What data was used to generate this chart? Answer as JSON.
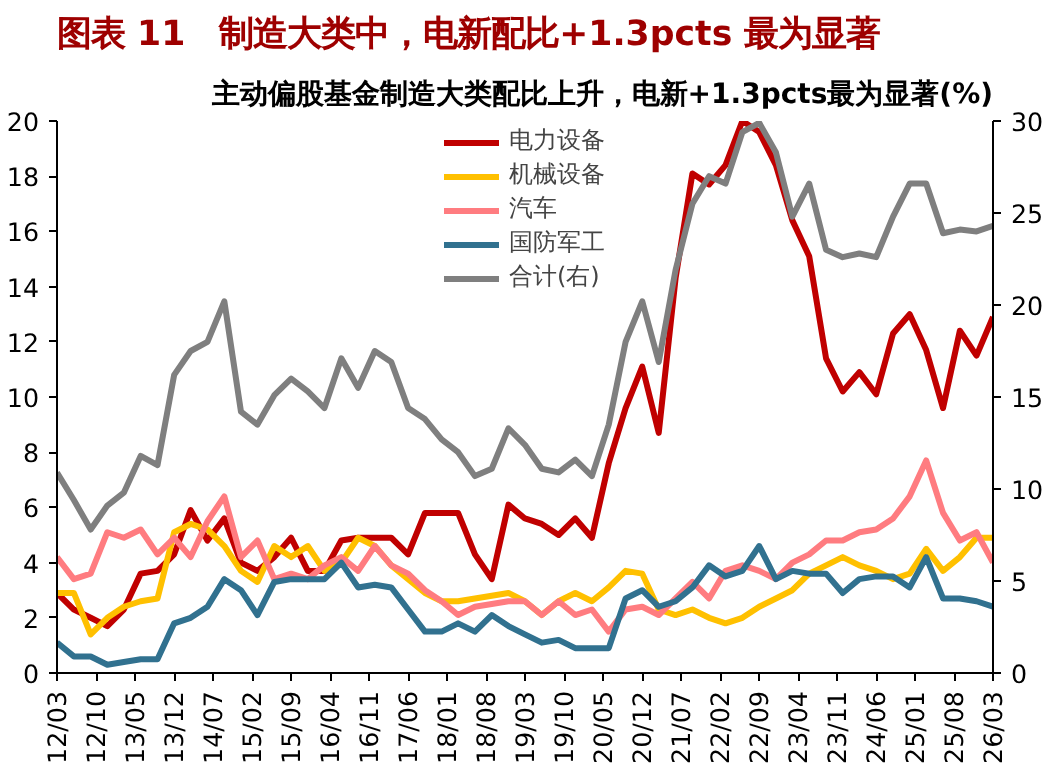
{
  "chart_data": {
    "type": "line",
    "title": "图表 11　制造大类中，电新配比+1.3pcts 最为显著",
    "subtitle": "主动偏股基金制造大类配比上升，电新+1.3pcts最为显著(%)",
    "x": [
      "2012-03",
      "2012-06",
      "2012-09",
      "2012-12",
      "2013-03",
      "2013-06",
      "2013-09",
      "2013-12",
      "2014-03",
      "2014-06",
      "2014-09",
      "2014-12",
      "2015-03",
      "2015-06",
      "2015-09",
      "2015-12",
      "2016-03",
      "2016-06",
      "2016-09",
      "2016-12",
      "2017-03",
      "2017-06",
      "2017-09",
      "2017-12",
      "2018-03",
      "2018-06",
      "2018-09",
      "2018-12",
      "2019-03",
      "2019-06",
      "2019-09",
      "2019-12",
      "2020-03",
      "2020-06",
      "2020-09",
      "2020-12",
      "2021-03",
      "2021-06",
      "2021-09",
      "2021-12",
      "2022-03",
      "2022-06",
      "2022-09",
      "2022-12",
      "2023-03",
      "2023-06",
      "2023-09",
      "2023-12",
      "2024-03",
      "2024-06",
      "2024-09",
      "2024-12",
      "2025-03",
      "2025-06",
      "2025-09",
      "2025-12",
      "2026-03"
    ],
    "series": [
      {
        "name": "电力设备",
        "color": "#c00000",
        "values": [
          2.9,
          2.3,
          2.0,
          1.7,
          2.3,
          3.6,
          3.7,
          4.3,
          5.9,
          4.8,
          5.6,
          4.0,
          3.7,
          4.2,
          4.9,
          3.7,
          3.7,
          4.8,
          4.9,
          4.9,
          4.9,
          4.3,
          5.8,
          5.8,
          5.8,
          4.3,
          3.4,
          6.1,
          5.6,
          5.4,
          5.0,
          5.6,
          4.9,
          7.6,
          9.6,
          11.1,
          8.7,
          14.3,
          18.1,
          17.7,
          18.4,
          20.0,
          19.6,
          18.4,
          16.4,
          15.1,
          11.4,
          10.2,
          10.9,
          10.1,
          12.3,
          13.0,
          11.7,
          9.6,
          12.4,
          11.5,
          12.9
        ]
      },
      {
        "name": "机械设备",
        "color": "#ffc000",
        "values": [
          2.9,
          2.9,
          1.4,
          2.0,
          2.4,
          2.6,
          2.7,
          5.1,
          5.4,
          5.2,
          4.6,
          3.7,
          3.3,
          4.6,
          4.2,
          4.6,
          3.7,
          4.0,
          4.9,
          4.6,
          3.9,
          3.4,
          2.9,
          2.6,
          2.6,
          2.7,
          2.8,
          2.9,
          2.6,
          2.1,
          2.6,
          2.9,
          2.6,
          3.1,
          3.7,
          3.6,
          2.3,
          2.1,
          2.3,
          2.0,
          1.8,
          2.0,
          2.4,
          2.7,
          3.0,
          3.6,
          3.9,
          4.2,
          3.9,
          3.7,
          3.4,
          3.6,
          4.5,
          3.7,
          4.2,
          4.9,
          4.9
        ]
      },
      {
        "name": "汽车",
        "color": "#ff7c80",
        "values": [
          4.2,
          3.4,
          3.6,
          5.1,
          4.9,
          5.2,
          4.3,
          4.9,
          4.2,
          5.5,
          6.4,
          4.2,
          4.8,
          3.4,
          3.6,
          3.4,
          3.9,
          4.2,
          3.7,
          4.6,
          3.9,
          3.6,
          3.0,
          2.6,
          2.1,
          2.4,
          2.5,
          2.6,
          2.6,
          2.1,
          2.6,
          2.1,
          2.3,
          1.5,
          2.3,
          2.4,
          2.1,
          2.7,
          3.3,
          2.7,
          3.7,
          3.9,
          3.7,
          3.4,
          4.0,
          4.3,
          4.8,
          4.8,
          5.1,
          5.2,
          5.6,
          6.4,
          7.7,
          5.8,
          4.8,
          5.1,
          4.0
        ]
      },
      {
        "name": "国防军工",
        "color": "#31718f",
        "values": [
          1.1,
          0.6,
          0.6,
          0.3,
          0.4,
          0.5,
          0.5,
          1.8,
          2.0,
          2.4,
          3.4,
          3.0,
          2.1,
          3.3,
          3.4,
          3.4,
          3.4,
          4.0,
          3.1,
          3.2,
          3.1,
          2.3,
          1.5,
          1.5,
          1.8,
          1.5,
          2.1,
          1.7,
          1.4,
          1.1,
          1.2,
          0.9,
          0.9,
          0.9,
          2.7,
          3.0,
          2.4,
          2.6,
          3.1,
          3.9,
          3.5,
          3.7,
          4.6,
          3.4,
          3.7,
          3.6,
          3.6,
          2.9,
          3.4,
          3.5,
          3.5,
          3.1,
          4.2,
          2.7,
          2.7,
          2.6,
          2.4
        ]
      },
      {
        "name": "合计(右)",
        "color": "#7f7f7f",
        "axis": "y2",
        "values": [
          10.9,
          9.4,
          7.8,
          9.1,
          9.8,
          11.8,
          11.3,
          16.2,
          17.5,
          18.0,
          20.2,
          14.2,
          13.5,
          15.1,
          16.0,
          15.3,
          14.4,
          17.1,
          15.5,
          17.5,
          16.9,
          14.4,
          13.8,
          12.7,
          12.0,
          10.7,
          11.1,
          13.3,
          12.4,
          11.1,
          10.9,
          11.6,
          10.7,
          13.5,
          18.0,
          20.2,
          16.9,
          21.9,
          25.5,
          27.0,
          26.6,
          29.4,
          29.9,
          28.3,
          24.8,
          26.6,
          23.0,
          22.6,
          22.8,
          22.6,
          24.8,
          26.6,
          26.6,
          23.9,
          24.1,
          24.0,
          24.3
        ]
      }
    ],
    "xlim": [
      "2012-03",
      "2026-03"
    ],
    "xticks": [
      {
        "value": "2012-03",
        "label": "12/03"
      },
      {
        "value": "2012-10",
        "label": "12/10"
      },
      {
        "value": "2013-05",
        "label": "13/05"
      },
      {
        "value": "2013-12",
        "label": "13/12"
      },
      {
        "value": "2014-07",
        "label": "14/07"
      },
      {
        "value": "2015-02",
        "label": "15/02"
      },
      {
        "value": "2015-09",
        "label": "15/09"
      },
      {
        "value": "2016-04",
        "label": "16/04"
      },
      {
        "value": "2016-11",
        "label": "16/11"
      },
      {
        "value": "2017-06",
        "label": "17/06"
      },
      {
        "value": "2018-01",
        "label": "18/01"
      },
      {
        "value": "2018-08",
        "label": "18/08"
      },
      {
        "value": "2019-03",
        "label": "19/03"
      },
      {
        "value": "2019-10",
        "label": "19/10"
      },
      {
        "value": "2020-05",
        "label": "20/05"
      },
      {
        "value": "2020-12",
        "label": "20/12"
      },
      {
        "value": "2021-07",
        "label": "21/07"
      },
      {
        "value": "2022-02",
        "label": "22/02"
      },
      {
        "value": "2022-09",
        "label": "22/09"
      },
      {
        "value": "2023-04",
        "label": "23/04"
      },
      {
        "value": "2023-11",
        "label": "23/11"
      },
      {
        "value": "2024-06",
        "label": "24/06"
      },
      {
        "value": "2025-01",
        "label": "25/01"
      },
      {
        "value": "2025-08",
        "label": "25/08"
      },
      {
        "value": "2026-03",
        "label": "26/03"
      }
    ],
    "ylim": [
      0,
      20
    ],
    "yticks": [
      0,
      2,
      4,
      6,
      8,
      10,
      12,
      14,
      16,
      18,
      20
    ],
    "y2lim": [
      0,
      30
    ],
    "y2ticks": [
      0,
      5,
      10,
      15,
      20,
      25,
      30
    ],
    "grid": false,
    "legend": "top",
    "line_style": "solid"
  }
}
